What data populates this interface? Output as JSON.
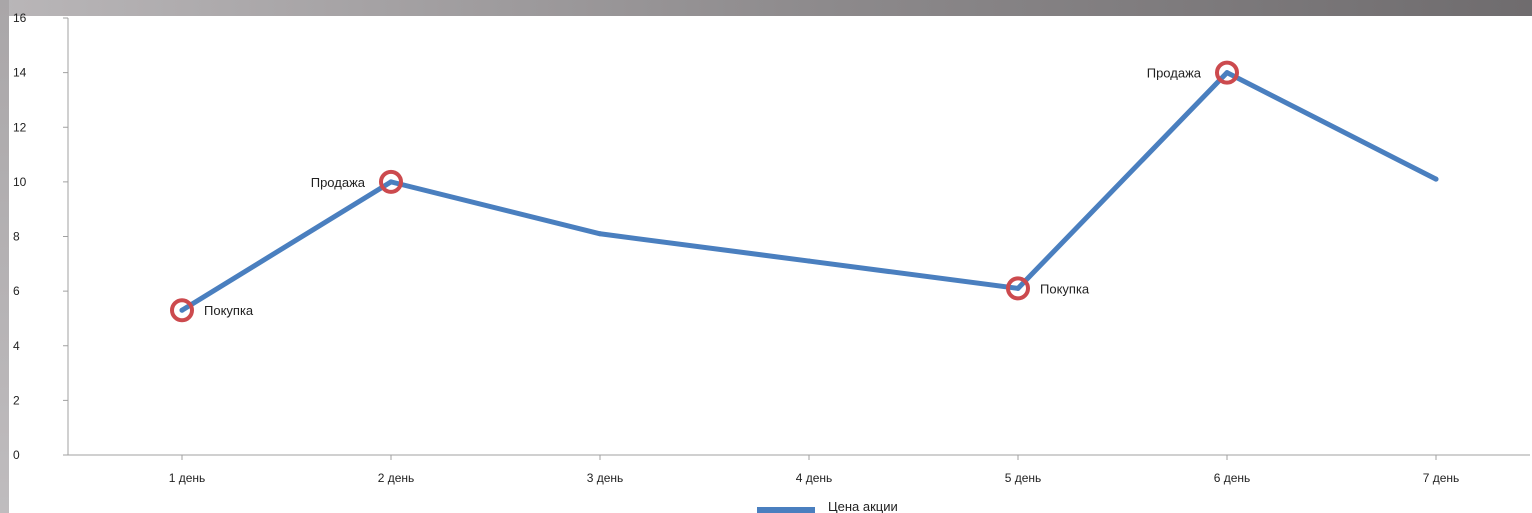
{
  "colors": {
    "line": "#4a7fbf",
    "marker": "#cc4a4e",
    "axis": "#a0a0a0",
    "text": "#222222"
  },
  "chart_data": {
    "type": "line",
    "title": "",
    "xlabel": "",
    "ylabel": "",
    "categories": [
      "1 день",
      "2 день",
      "3 день",
      "4 день",
      "5 день",
      "6 день",
      "7 день"
    ],
    "series": [
      {
        "name": "Цена акции",
        "values": [
          5.3,
          10,
          8.1,
          7.1,
          6.1,
          14,
          10.1
        ]
      }
    ],
    "ylim": [
      0,
      16
    ],
    "yticks": [
      0,
      2,
      4,
      6,
      8,
      10,
      12,
      14,
      16
    ],
    "grid": false,
    "legend": "bottom",
    "annotations": [
      {
        "category": "1 день",
        "label": "Покупка",
        "side": "right"
      },
      {
        "category": "2 день",
        "label": "Продажа",
        "side": "left"
      },
      {
        "category": "5 день",
        "label": "Покупка",
        "side": "right"
      },
      {
        "category": "6 день",
        "label": "Продажа",
        "side": "left"
      }
    ]
  }
}
